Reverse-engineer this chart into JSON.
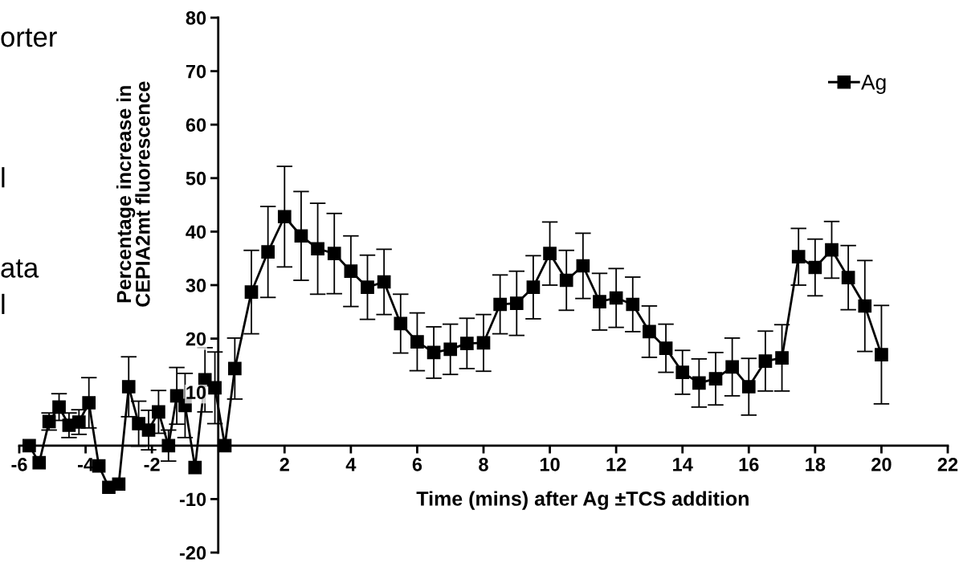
{
  "chart_data": {
    "type": "line",
    "xlabel": "Time (mins) after Ag ±TCS addition",
    "ylabel": "Percentage increase in\nCEPIA2mt fluorescence",
    "x": [
      -5.7,
      -5.4,
      -5.1,
      -4.8,
      -4.5,
      -4.2,
      -3.9,
      -3.6,
      -3.3,
      -3.0,
      -2.7,
      -2.4,
      -2.1,
      -1.8,
      -1.5,
      -1.25,
      -1.0,
      -0.7,
      -0.4,
      -0.1,
      0.2,
      0.5,
      1.0,
      1.5,
      2.0,
      2.5,
      3.0,
      3.5,
      4.0,
      4.5,
      5.0,
      5.5,
      6.0,
      6.5,
      7.0,
      7.5,
      8.0,
      8.5,
      9.0,
      9.5,
      10.0,
      10.5,
      11.0,
      11.5,
      12.0,
      12.5,
      13.0,
      13.5,
      14.0,
      14.5,
      15.0,
      15.5,
      16.0,
      16.5,
      17.0,
      17.5,
      18.0,
      18.5,
      19.0,
      19.5,
      20.0
    ],
    "series": [
      {
        "name": "Ag",
        "color": "#000000",
        "values": [
          0,
          -3.2,
          4.5,
          7.2,
          3.8,
          4.4,
          8.0,
          -3.8,
          -7.8,
          -7.2,
          11.0,
          4.1,
          2.9,
          6.3,
          0,
          9.3,
          7.5,
          -4.1,
          12.3,
          10.8,
          0,
          14.4,
          28.7,
          36.2,
          42.8,
          39.2,
          36.8,
          35.9,
          32.6,
          29.6,
          30.6,
          22.8,
          19.4,
          17.4,
          18.0,
          19.1,
          19.2,
          26.4,
          26.6,
          29.6,
          35.9,
          30.9,
          33.6,
          26.9,
          27.6,
          26.4,
          21.3,
          18.2,
          13.7,
          11.7,
          12.5,
          14.7,
          11.0,
          15.8,
          16.4,
          35.3,
          33.3,
          36.6,
          31.4,
          26.1,
          17.0
        ],
        "errors": [
          null,
          null,
          1.6,
          2.5,
          2.3,
          2.3,
          4.7,
          null,
          null,
          null,
          5.6,
          4.2,
          3.7,
          4.0,
          2.9,
          5.3,
          6.0,
          null,
          6.0,
          6.7,
          null,
          5.7,
          7.8,
          8.5,
          9.4,
          8.3,
          8.5,
          7.5,
          6.6,
          6.0,
          6.1,
          5.5,
          5.4,
          4.8,
          4.7,
          4.7,
          5.3,
          5.5,
          6.0,
          5.9,
          5.9,
          5.6,
          6.1,
          5.3,
          5.5,
          5.1,
          4.8,
          4.5,
          4.1,
          4.5,
          4.9,
          5.4,
          5.3,
          5.6,
          6.2,
          5.3,
          5.3,
          5.3,
          6.0,
          8.5,
          9.2
        ]
      }
    ],
    "xlim": [
      -6,
      22
    ],
    "xticks": [
      -6,
      -4,
      -2,
      2,
      4,
      6,
      8,
      10,
      12,
      14,
      16,
      18,
      20,
      22
    ],
    "ylim": [
      -20,
      80
    ],
    "yticks": [
      -20,
      -10,
      10,
      20,
      30,
      40,
      50,
      60,
      70,
      80
    ],
    "marker": "square",
    "line_style": "solid",
    "grid": false,
    "legend": "top right",
    "annotations": [
      "orter",
      "l",
      "ata",
      "l"
    ]
  }
}
